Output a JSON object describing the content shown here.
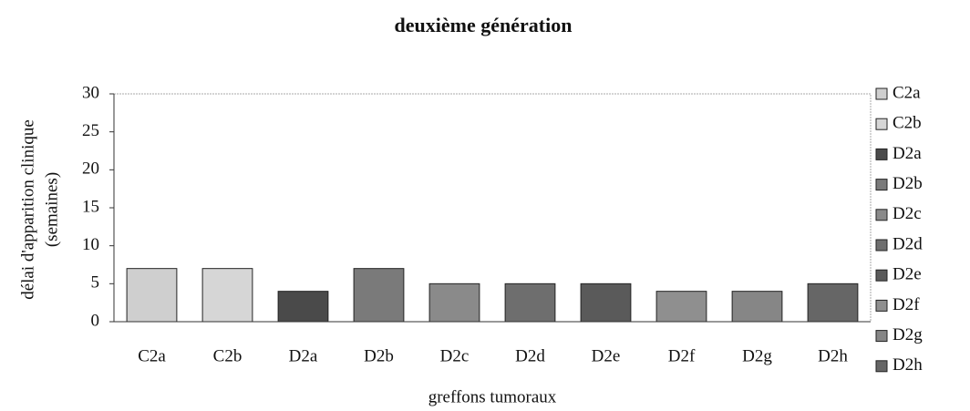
{
  "chart_data": {
    "type": "bar",
    "title": "deuxième génération",
    "ylabel": [
      "délai d'apparition clinique",
      "(semaines)"
    ],
    "xlabel": "greffons tumoraux",
    "categories": [
      "C2a",
      "C2b",
      "D2a",
      "D2b",
      "D2c",
      "D2d",
      "D2e",
      "D2f",
      "D2g",
      "D2h"
    ],
    "values": [
      7,
      7,
      4,
      7,
      5,
      5,
      5,
      4,
      4,
      5
    ],
    "colors": [
      "#cfcfcf",
      "#d6d6d6",
      "#4a4a4a",
      "#7a7a7a",
      "#8a8a8a",
      "#6e6e6e",
      "#5a5a5a",
      "#8f8f8f",
      "#868686",
      "#666666"
    ],
    "ylim": [
      0,
      30
    ],
    "yticks": [
      0,
      5,
      10,
      15,
      20,
      25,
      30
    ],
    "grid": false,
    "legend": "right"
  }
}
